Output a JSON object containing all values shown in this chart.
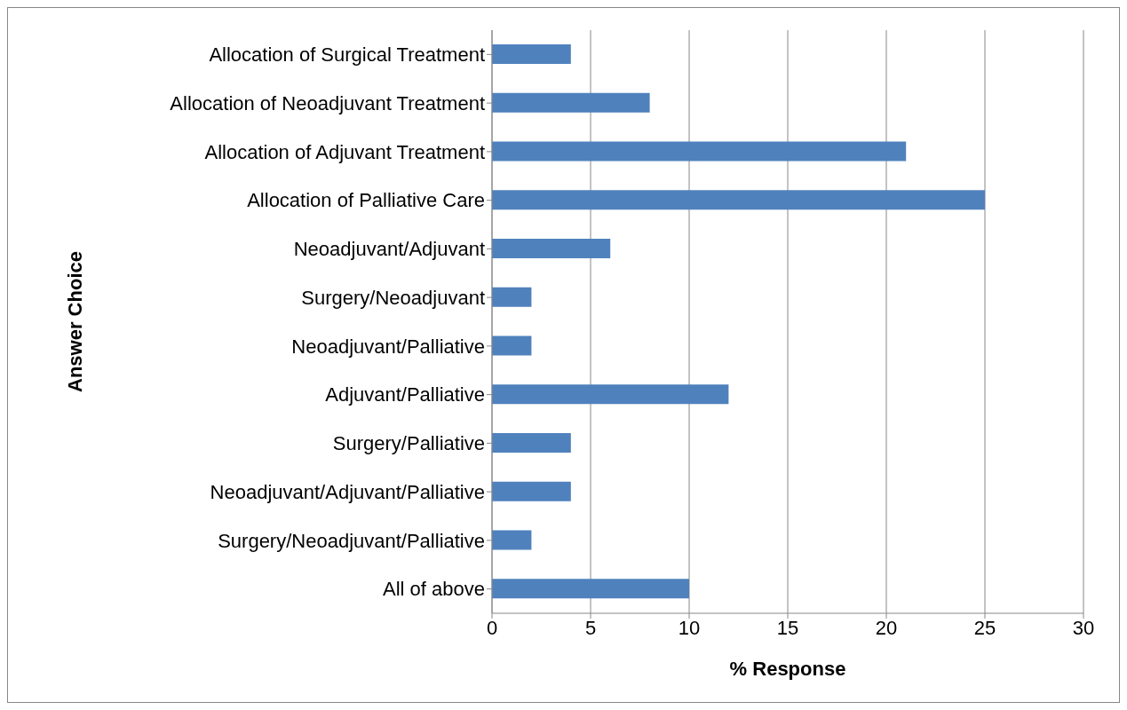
{
  "chart_data": {
    "type": "bar",
    "orientation": "horizontal",
    "xlabel": "% Response",
    "ylabel": "Answer Choice",
    "categories": [
      "Allocation of Surgical Treatment",
      "Allocation of Neoadjuvant Treatment",
      "Allocation of Adjuvant Treatment",
      "Allocation of Palliative Care",
      "Neoadjuvant/Adjuvant",
      "Surgery/Neoadjuvant",
      "Neoadjuvant/Palliative",
      "Adjuvant/Palliative",
      "Surgery/Palliative",
      "Neoadjuvant/Adjuvant/Palliative",
      "Surgery/Neoadjuvant/Palliative",
      "All of above"
    ],
    "values": [
      4,
      8,
      21,
      25,
      6,
      2,
      2,
      12,
      4,
      4,
      2,
      10
    ],
    "color": "#4f81bd",
    "xlim": [
      0,
      30
    ],
    "xticks": [
      0,
      5,
      10,
      15,
      20,
      25,
      30
    ],
    "grid": "x"
  }
}
